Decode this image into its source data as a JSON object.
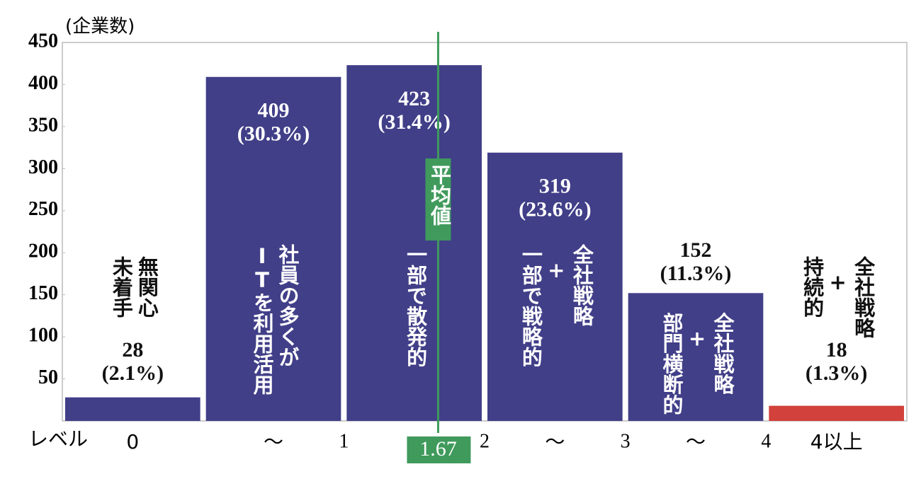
{
  "chart_data": {
    "type": "bar",
    "y_axis_label": "(企業数)",
    "x_axis_label": "レベル",
    "categories": [
      [
        "無関心",
        "未着手"
      ],
      [
        "社員の多くが",
        "ITを利用活用"
      ],
      [
        "一部で散発的"
      ],
      [
        "全社戦略",
        "+",
        "一部で戦略的"
      ],
      [
        "全社戦略",
        "+",
        "部門横断的"
      ],
      [
        "全社戦略",
        "+",
        "持続的"
      ]
    ],
    "values": [
      28,
      409,
      423,
      319,
      152,
      18
    ],
    "share_labels": [
      "(2.1%)",
      "(30.3%)",
      "(31.4%)",
      "(23.6%)",
      "(11.3%)",
      "(1.3%)"
    ],
    "colors": [
      "#413f88",
      "#413f88",
      "#413f88",
      "#413f88",
      "#413f88",
      "#d2413b"
    ],
    "center_labels": [
      "0",
      "～",
      null,
      "～",
      "～",
      "4以上"
    ],
    "boundary_labels": [
      null,
      "1",
      "2",
      "3",
      "4",
      null
    ],
    "average": {
      "label": "平均値",
      "value": 1.67,
      "color": "#3f9a5c"
    },
    "ylim": [
      0,
      450
    ],
    "yticks": [
      50,
      100,
      150,
      200,
      250,
      300,
      350,
      400,
      450
    ]
  }
}
